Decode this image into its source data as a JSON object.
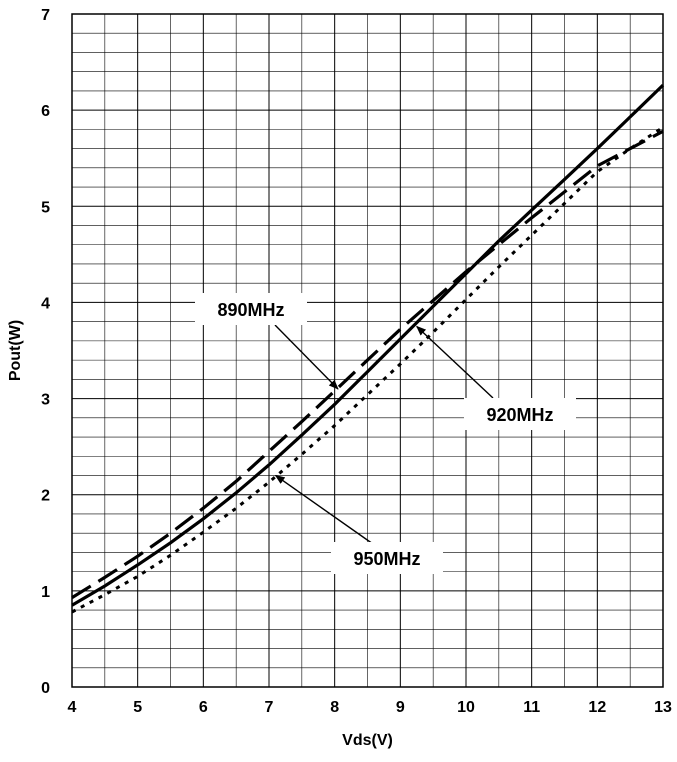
{
  "chart_data": {
    "type": "line",
    "xlabel": "Vds(V)",
    "ylabel": "Pout(W)",
    "xlim": [
      4,
      13
    ],
    "ylim": [
      0,
      7
    ],
    "x_ticks": [
      "4",
      "5",
      "6",
      "7",
      "8",
      "9",
      "10",
      "11",
      "12",
      "13"
    ],
    "y_ticks": [
      "0",
      "1",
      "2",
      "3",
      "4",
      "5",
      "6",
      "7"
    ],
    "grid": true,
    "minor_grid": {
      "x_per_major": 2,
      "y_per_major": 5
    },
    "line_color": "#000000",
    "series": [
      {
        "name": "890MHz",
        "style": "long-dash",
        "x": [
          4,
          4.5,
          5,
          5.5,
          6,
          6.5,
          7,
          7.5,
          8,
          8.5,
          9,
          9.5,
          10,
          10.5,
          11,
          11.5,
          12,
          12.5,
          13
        ],
        "y": [
          0.93,
          1.14,
          1.36,
          1.6,
          1.86,
          2.14,
          2.45,
          2.76,
          3.08,
          3.4,
          3.72,
          4.02,
          4.32,
          4.6,
          4.88,
          5.15,
          5.42,
          5.6,
          5.78
        ]
      },
      {
        "name": "920MHz",
        "style": "solid",
        "x": [
          4,
          4.5,
          5,
          5.5,
          6,
          6.5,
          7,
          7.5,
          8,
          8.5,
          9,
          9.5,
          10,
          10.5,
          11,
          11.5,
          12,
          12.5,
          13
        ],
        "y": [
          0.85,
          1.05,
          1.27,
          1.5,
          1.75,
          2.02,
          2.31,
          2.62,
          2.94,
          3.28,
          3.62,
          3.96,
          4.3,
          4.64,
          4.96,
          5.28,
          5.6,
          5.93,
          6.26
        ]
      },
      {
        "name": "950MHz",
        "style": "dotted",
        "x": [
          4,
          4.5,
          5,
          5.5,
          6,
          6.5,
          7,
          7.5,
          8,
          8.5,
          9,
          9.5,
          10,
          10.5,
          11,
          11.5,
          12,
          12.5,
          13
        ],
        "y": [
          0.78,
          0.96,
          1.15,
          1.37,
          1.61,
          1.86,
          2.13,
          2.42,
          2.72,
          3.04,
          3.36,
          3.69,
          4.03,
          4.37,
          4.7,
          5.03,
          5.36,
          5.6,
          5.82
        ]
      }
    ],
    "annotations": [
      {
        "text": "890MHz",
        "series": "890MHz",
        "point": [
          8.05,
          3.1
        ]
      },
      {
        "text": "920MHz",
        "series": "920MHz",
        "point": [
          9.25,
          3.75
        ]
      },
      {
        "text": "950MHz",
        "series": "950MHz",
        "point": [
          7.1,
          2.2
        ]
      }
    ]
  }
}
